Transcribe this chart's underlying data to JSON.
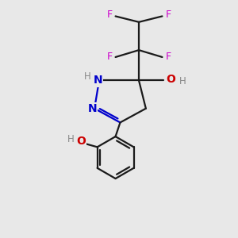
{
  "bg_color": "#e8e8e8",
  "bond_color": "#1a1a1a",
  "n_color": "#0000cc",
  "o_color": "#cc0000",
  "f_color": "#cc00cc",
  "h_color": "#555555",
  "line_width": 1.6,
  "figsize": [
    3.0,
    3.0
  ],
  "dpi": 100,
  "xlim": [
    0,
    10
  ],
  "ylim": [
    0,
    10
  ]
}
